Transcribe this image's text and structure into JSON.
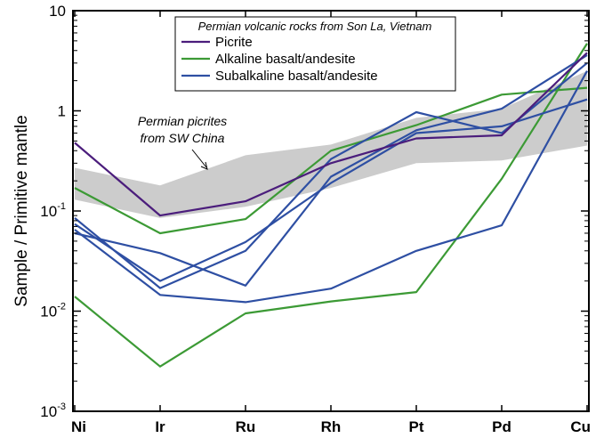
{
  "chart_data": {
    "type": "line",
    "title": "",
    "xlabel": "",
    "ylabel": "Sample / Primitive mantle",
    "yscale": "log",
    "ylim": [
      0.001,
      10
    ],
    "ytick_labels": [
      {
        "base": "10",
        "exp": "-3"
      },
      {
        "base": "10",
        "exp": "-2"
      },
      {
        "base": "10",
        "exp": "-1"
      },
      {
        "base": "1",
        "exp": ""
      },
      {
        "base": "10",
        "exp": ""
      }
    ],
    "categories": [
      "Ni",
      "Ir",
      "Ru",
      "Rh",
      "Pt",
      "Pd",
      "Cu"
    ],
    "grid": false,
    "legend": {
      "title": "Permian volcanic rocks from Son La, Vietnam",
      "placement": "top-center",
      "entries": [
        {
          "label": "Picrite",
          "color": "#4b1d7c"
        },
        {
          "label": "Alkaline basalt/andesite",
          "color": "#3c9a35"
        },
        {
          "label": "Subalkaline basalt/andesite",
          "color": "#2e4fa3"
        }
      ]
    },
    "band": {
      "label_line1": "Permian picrites",
      "label_line2": "from SW China",
      "color": "#cccccc",
      "upper": [
        0.27,
        0.18,
        0.36,
        0.46,
        0.85,
        1.05,
        2.5
      ],
      "lower": [
        0.13,
        0.085,
        0.11,
        0.17,
        0.3,
        0.32,
        0.45
      ]
    },
    "series": [
      {
        "group": "Picrite",
        "color": "#4b1d7c",
        "values": [
          0.48,
          0.09,
          0.125,
          0.3,
          0.53,
          0.57,
          3.8
        ]
      },
      {
        "group": "Alkaline basalt/andesite",
        "color": "#3c9a35",
        "values": [
          0.17,
          0.06,
          0.083,
          0.4,
          0.72,
          1.45,
          1.7
        ]
      },
      {
        "group": "Alkaline basalt/andesite",
        "color": "#3c9a35",
        "values": [
          0.014,
          0.0028,
          0.0095,
          0.0125,
          0.0155,
          0.21,
          4.7
        ]
      },
      {
        "group": "Subalkaline basalt/andesite",
        "color": "#2e4fa3",
        "values": [
          0.085,
          0.017,
          0.04,
          0.33,
          0.97,
          0.6,
          3.0
        ]
      },
      {
        "group": "Subalkaline basalt/andesite",
        "color": "#2e4fa3",
        "values": [
          0.074,
          0.02,
          0.049,
          0.19,
          0.6,
          0.7,
          1.3
        ]
      },
      {
        "group": "Subalkaline basalt/andesite",
        "color": "#2e4fa3",
        "values": [
          0.06,
          0.038,
          0.018,
          0.22,
          0.64,
          1.05,
          3.6
        ]
      },
      {
        "group": "Subalkaline basalt/andesite",
        "color": "#2e4fa3",
        "values": [
          0.065,
          0.0145,
          0.0123,
          0.0168,
          0.04,
          0.072,
          2.5
        ]
      }
    ]
  }
}
